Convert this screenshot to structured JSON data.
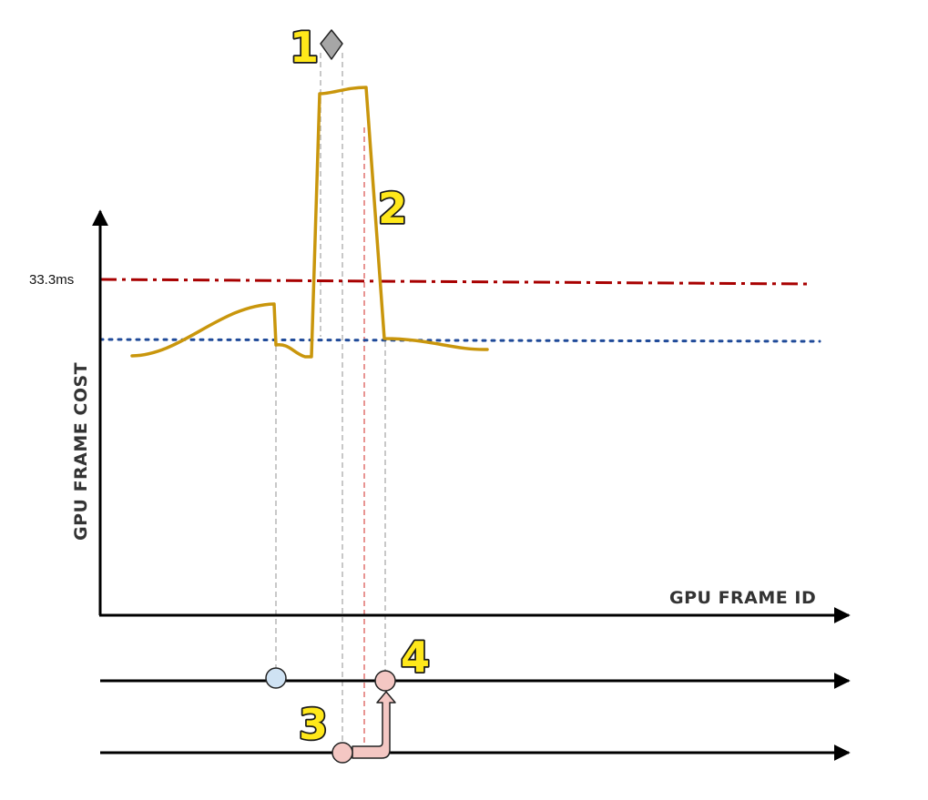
{
  "labels": {
    "y_axis_title": "GPU FRAME COST",
    "x_axis_title": "GPU FRAME ID",
    "threshold": "33.3ms"
  },
  "markers": [
    "1",
    "2",
    "3",
    "4"
  ],
  "colors": {
    "axis": "#000000",
    "frame_cost_curve": "#c9960c",
    "threshold_line": "#a80000",
    "target_line": "#1f4a99",
    "guide_gray": "#b5b5b5",
    "guide_red": "#e0706e",
    "event_blue": "#cfe2f3",
    "event_pink": "#f4c7c3",
    "marker_fill": "#ffe81a",
    "diamond": "#a6a6a6"
  }
}
